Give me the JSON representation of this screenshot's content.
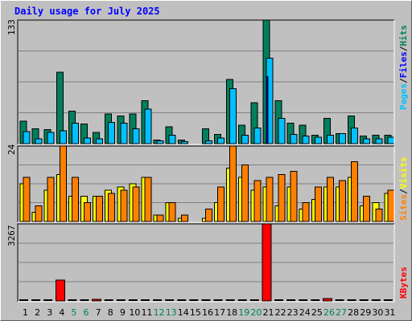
{
  "title": "Daily usage for July 2025",
  "colors": {
    "background": "#c0c0c0",
    "hits": "#00805c",
    "files": "#00c0ff",
    "pages": "#00c0ff",
    "sites": "#ff8000",
    "visits": "#ffff00",
    "kbytes": "#ff0000",
    "title": "#0000ff",
    "weekend": "#00805c"
  },
  "panels": {
    "top": {
      "max_label": "133",
      "legend": [
        "Pages",
        "/",
        "Files",
        "/",
        "Hits"
      ]
    },
    "middle": {
      "max_label": "24",
      "legend": [
        "Sites",
        "/",
        "Visits"
      ]
    },
    "bottom": {
      "max_label": "3267",
      "legend": [
        "KBytes"
      ]
    }
  },
  "chart_data": {
    "type": "bar",
    "categories": [
      "1",
      "2",
      "3",
      "4",
      "5",
      "6",
      "7",
      "8",
      "9",
      "10",
      "11",
      "12",
      "13",
      "14",
      "15",
      "16",
      "17",
      "18",
      "19",
      "20",
      "21",
      "22",
      "23",
      "24",
      "25",
      "26",
      "27",
      "28",
      "29",
      "30",
      "31"
    ],
    "weekend_days": [
      "5",
      "6",
      "12",
      "13",
      "19",
      "20",
      "26",
      "27"
    ],
    "series": [
      {
        "name": "Hits",
        "panel": "top",
        "values": [
          24,
          16,
          15,
          77,
          35,
          21,
          12,
          32,
          30,
          32,
          46,
          4,
          18,
          4,
          0,
          16,
          10,
          69,
          20,
          44,
          133,
          46,
          22,
          20,
          9,
          27,
          11,
          30,
          8,
          9,
          9
        ]
      },
      {
        "name": "Files",
        "panel": "top",
        "values": [
          13,
          5,
          12,
          14,
          22,
          6,
          5,
          23,
          22,
          16,
          37,
          3,
          9,
          2,
          0,
          3,
          6,
          59,
          9,
          17,
          92,
          27,
          10,
          8,
          7,
          9,
          11,
          17,
          5,
          5,
          7
        ]
      },
      {
        "name": "Pages",
        "panel": "top",
        "values": [
          0,
          0,
          0,
          0,
          0,
          0,
          0,
          0,
          0,
          0,
          0,
          0,
          0,
          0,
          0,
          0,
          0,
          0,
          0,
          0,
          72,
          0,
          0,
          0,
          0,
          0,
          0,
          0,
          0,
          0,
          0
        ]
      },
      {
        "name": "Visits",
        "panel": "middle",
        "values": [
          12,
          3,
          10,
          15,
          8,
          8,
          8,
          10,
          11,
          12,
          14,
          2,
          6,
          1,
          0,
          1,
          6,
          17,
          14,
          10,
          11,
          5,
          11,
          4,
          7,
          11,
          11,
          14,
          5,
          6,
          9
        ]
      },
      {
        "name": "Sites",
        "panel": "middle",
        "values": [
          14,
          5,
          14,
          24,
          14,
          6,
          8,
          9,
          10,
          11,
          14,
          2,
          6,
          2,
          0,
          4,
          11,
          24,
          18,
          13,
          14,
          15,
          16,
          6,
          11,
          14,
          13,
          19,
          8,
          4,
          10
        ]
      },
      {
        "name": "KBytes",
        "panel": "bottom",
        "values": [
          0,
          0,
          0,
          877,
          0,
          0,
          70,
          0,
          0,
          0,
          0,
          0,
          0,
          0,
          0,
          0,
          0,
          0,
          0,
          0,
          3267,
          0,
          0,
          0,
          0,
          110,
          0,
          0,
          0,
          0,
          0
        ]
      }
    ],
    "ylim": {
      "top": [
        0,
        133
      ],
      "middle": [
        0,
        24
      ],
      "bottom": [
        0,
        3267
      ]
    },
    "grid": true
  }
}
